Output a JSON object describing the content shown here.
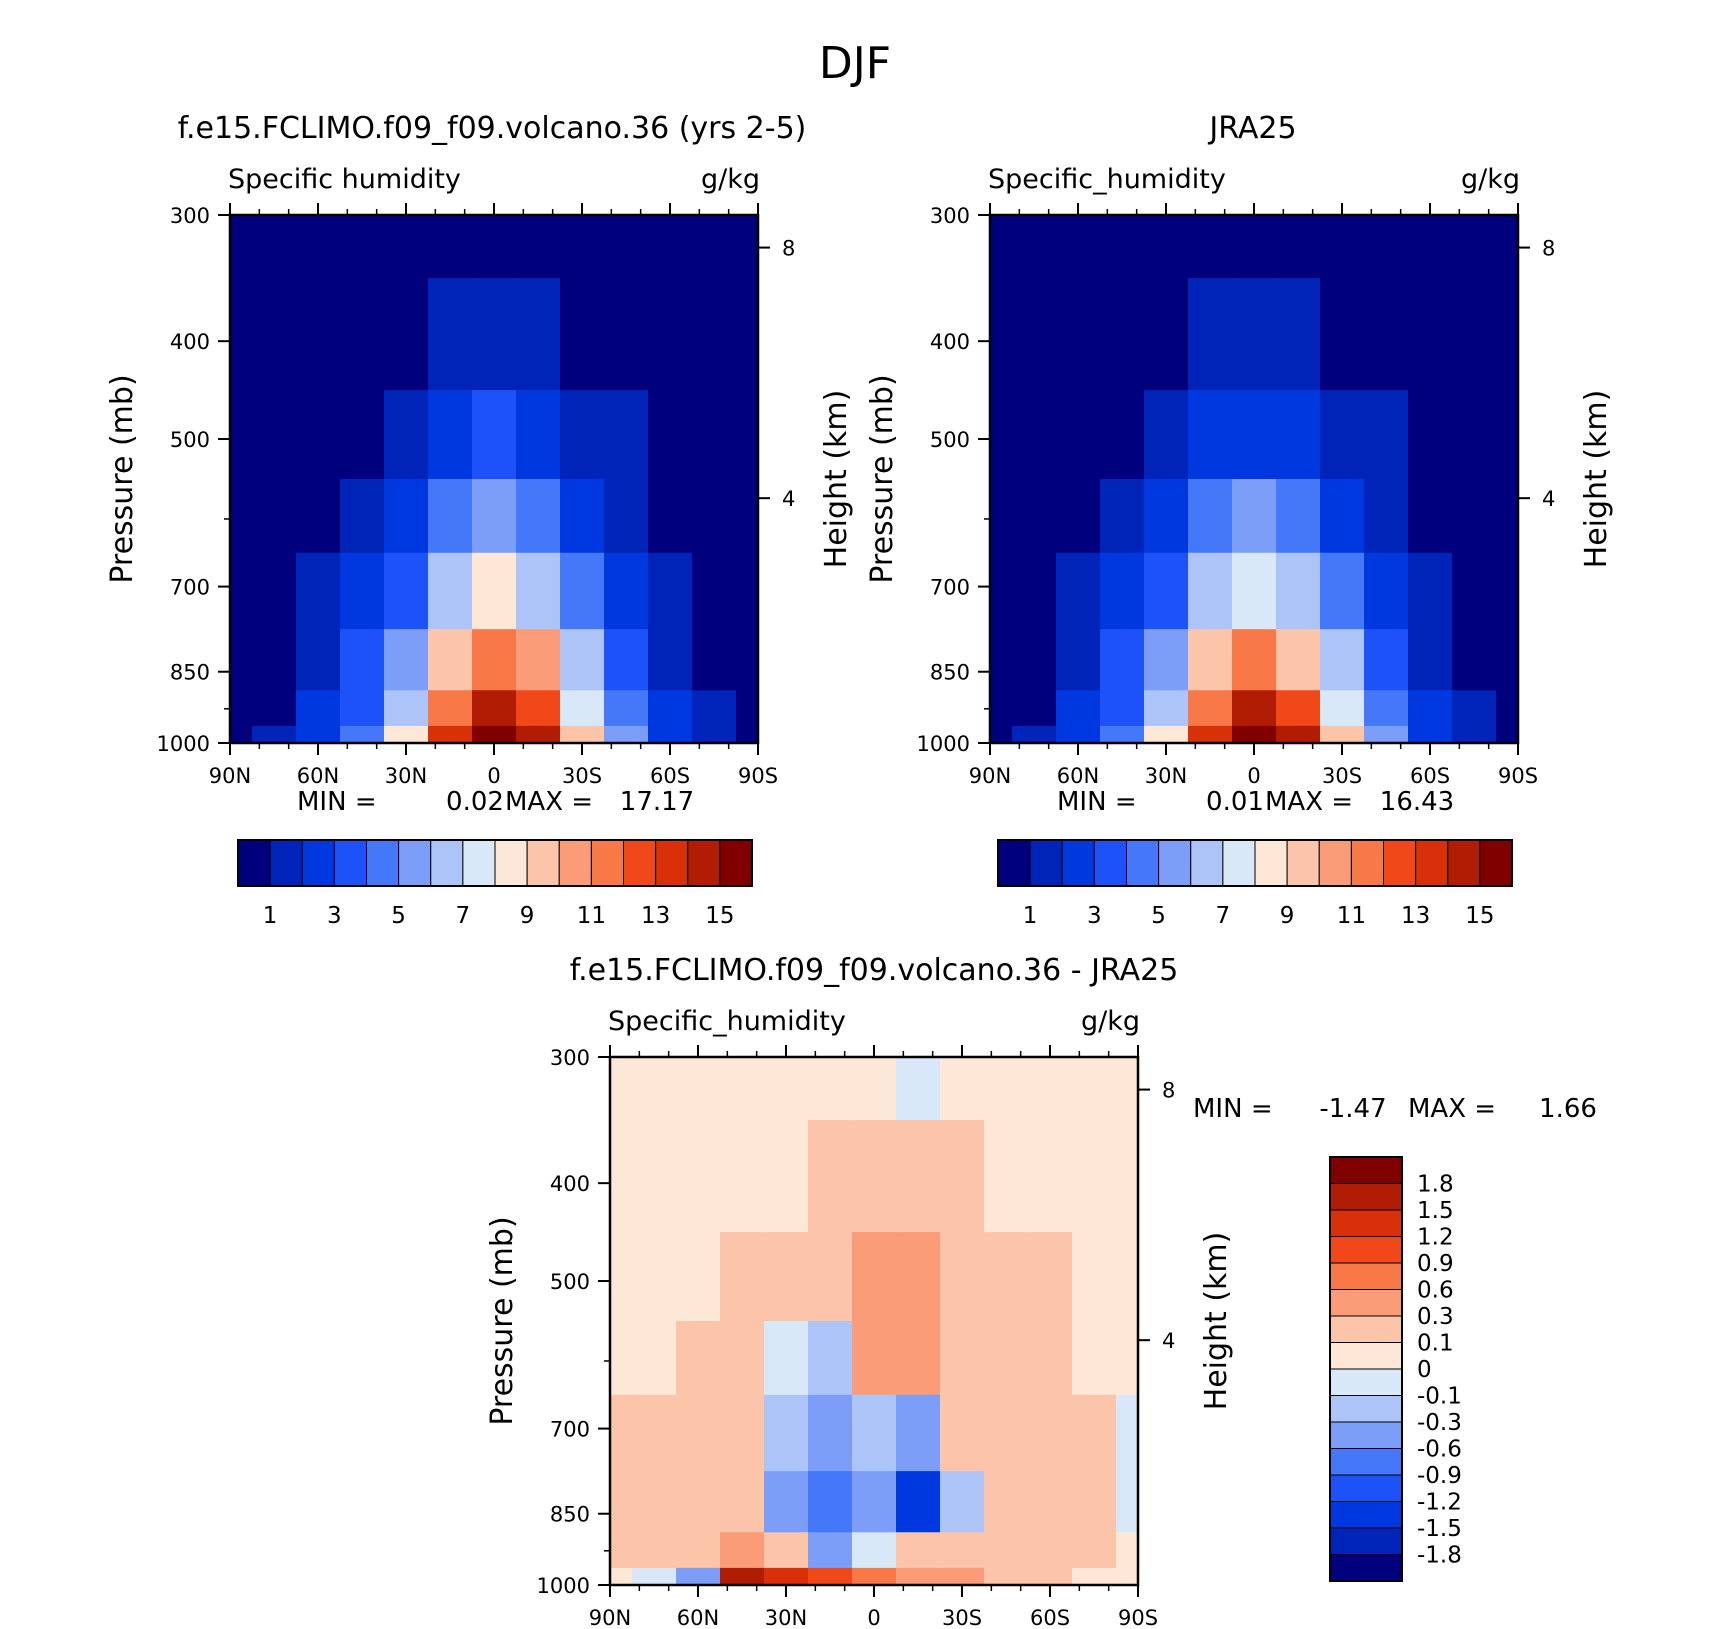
{
  "figure": {
    "title": "DJF"
  },
  "chart_data": [
    {
      "id": "model",
      "type": "heatmap",
      "title": "f.e15.FCLIMO.f09_f09.volcano.36 (yrs 2-5)",
      "left_label": "Specific humidity",
      "units": "g/kg",
      "ylabel": "Pressure (mb)",
      "right_ylabel": "Height (km)",
      "x_ticks": [
        "90N",
        "60N",
        "30N",
        "0",
        "30S",
        "60S",
        "90S"
      ],
      "y_ticks": [
        "300",
        "400",
        "500",
        "700",
        "850",
        "1000"
      ],
      "right_ticks": [
        "8",
        "4"
      ],
      "min_label": "MIN =",
      "min_value": "0.02",
      "max_label": "MAX =",
      "max_value": "17.17",
      "levels": [
        1,
        2,
        3,
        4,
        5,
        6,
        7,
        8,
        9,
        10,
        11,
        12,
        13,
        14,
        15
      ],
      "colorbar_labels": [
        "1",
        "3",
        "5",
        "7",
        "9",
        "11",
        "13",
        "15"
      ],
      "lat": [
        90,
        75,
        60,
        45,
        30,
        15,
        0,
        -15,
        -30,
        -45,
        -60,
        -75,
        -90
      ],
      "pressure": [
        300,
        400,
        500,
        600,
        700,
        850,
        925,
        1000
      ],
      "values": [
        [
          0.02,
          0.04,
          0.06,
          0.1,
          0.2,
          0.4,
          0.55,
          0.4,
          0.2,
          0.1,
          0.05,
          0.03,
          0.02
        ],
        [
          0.05,
          0.1,
          0.2,
          0.4,
          0.8,
          1.2,
          1.5,
          1.2,
          0.8,
          0.4,
          0.15,
          0.06,
          0.04
        ],
        [
          0.1,
          0.2,
          0.5,
          0.9,
          1.5,
          2.5,
          3.0,
          2.6,
          1.6,
          1.0,
          0.4,
          0.15,
          0.08
        ],
        [
          0.2,
          0.4,
          0.8,
          1.4,
          2.4,
          4.0,
          5.2,
          4.2,
          2.8,
          1.6,
          0.8,
          0.3,
          0.15
        ],
        [
          0.3,
          0.6,
          1.2,
          2.0,
          3.5,
          6.5,
          8.0,
          6.5,
          4.0,
          2.2,
          1.2,
          0.5,
          0.25
        ],
        [
          0.45,
          0.8,
          1.6,
          3.0,
          5.0,
          9.5,
          11.5,
          10.0,
          6.0,
          3.5,
          1.6,
          0.8,
          0.4
        ],
        [
          0.5,
          0.9,
          2.0,
          3.8,
          6.5,
          11.5,
          14.5,
          12.5,
          7.5,
          4.5,
          2.0,
          1.0,
          0.5
        ],
        [
          0.55,
          1.0,
          2.4,
          4.5,
          8.0,
          13.5,
          17.17,
          14.5,
          9.0,
          5.5,
          2.4,
          1.1,
          0.6
        ]
      ]
    },
    {
      "id": "obs",
      "type": "heatmap",
      "title": "JRA25",
      "left_label": "Specific_humidity",
      "units": "g/kg",
      "ylabel": "Pressure (mb)",
      "right_ylabel": "Height (km)",
      "x_ticks": [
        "90N",
        "60N",
        "30N",
        "0",
        "30S",
        "60S",
        "90S"
      ],
      "y_ticks": [
        "300",
        "400",
        "500",
        "700",
        "850",
        "1000"
      ],
      "right_ticks": [
        "8",
        "4"
      ],
      "min_label": "MIN =",
      "min_value": "0.01",
      "max_label": "MAX =",
      "max_value": "16.43",
      "levels": [
        1,
        2,
        3,
        4,
        5,
        6,
        7,
        8,
        9,
        10,
        11,
        12,
        13,
        14,
        15
      ],
      "colorbar_labels": [
        "1",
        "3",
        "5",
        "7",
        "9",
        "11",
        "13",
        "15"
      ],
      "lat": [
        90,
        75,
        60,
        45,
        30,
        15,
        0,
        -15,
        -30,
        -45,
        -60,
        -75,
        -90
      ],
      "pressure": [
        300,
        400,
        500,
        600,
        700,
        850,
        925,
        1000
      ],
      "values": [
        [
          0.01,
          0.03,
          0.06,
          0.1,
          0.2,
          0.4,
          0.55,
          0.4,
          0.2,
          0.1,
          0.05,
          0.03,
          0.02
        ],
        [
          0.04,
          0.1,
          0.2,
          0.4,
          0.8,
          1.2,
          1.5,
          1.2,
          0.8,
          0.4,
          0.15,
          0.06,
          0.04
        ],
        [
          0.1,
          0.2,
          0.5,
          0.9,
          1.5,
          2.4,
          2.9,
          2.5,
          1.6,
          1.0,
          0.4,
          0.15,
          0.08
        ],
        [
          0.2,
          0.4,
          0.8,
          1.4,
          2.4,
          4.0,
          5.0,
          4.2,
          2.8,
          1.6,
          0.8,
          0.3,
          0.15
        ],
        [
          0.3,
          0.6,
          1.2,
          2.0,
          3.5,
          6.3,
          7.8,
          6.4,
          4.0,
          2.2,
          1.2,
          0.5,
          0.25
        ],
        [
          0.4,
          0.8,
          1.6,
          3.0,
          5.0,
          9.2,
          11.2,
          9.8,
          6.0,
          3.5,
          1.6,
          0.8,
          0.4
        ],
        [
          0.45,
          0.9,
          2.0,
          3.8,
          6.5,
          11.2,
          14.0,
          12.2,
          7.5,
          4.5,
          2.0,
          1.0,
          0.5
        ],
        [
          0.5,
          1.0,
          2.4,
          4.5,
          8.0,
          13.2,
          16.43,
          14.2,
          9.0,
          5.5,
          2.4,
          1.1,
          0.6
        ]
      ]
    },
    {
      "id": "diff",
      "type": "heatmap",
      "title": "f.e15.FCLIMO.f09_f09.volcano.36 - JRA25",
      "left_label": "Specific_humidity",
      "units": "g/kg",
      "ylabel": "Pressure (mb)",
      "right_ylabel": "Height (km)",
      "x_ticks": [
        "90N",
        "60N",
        "30N",
        "0",
        "30S",
        "60S",
        "90S"
      ],
      "y_ticks": [
        "300",
        "400",
        "500",
        "700",
        "850",
        "1000"
      ],
      "right_ticks": [
        "8",
        "4"
      ],
      "min_label": "MIN =",
      "min_value": "-1.47",
      "max_label": "MAX =",
      "max_value": "1.66",
      "levels": [
        -1.8,
        -1.5,
        -1.2,
        -0.9,
        -0.6,
        -0.3,
        -0.1,
        0,
        0.1,
        0.3,
        0.6,
        0.9,
        1.2,
        1.5,
        1.8
      ],
      "colorbar_labels": [
        "1.8",
        "1.5",
        "1.2",
        "0.9",
        "0.6",
        "0.3",
        "0.1",
        "0",
        "-0.1",
        "-0.3",
        "-0.6",
        "-0.9",
        "-1.2",
        "-1.5",
        "-1.8"
      ],
      "lat": [
        90,
        75,
        60,
        45,
        30,
        15,
        0,
        -15,
        -30,
        -45,
        -60,
        -75,
        -90
      ],
      "pressure": [
        300,
        400,
        500,
        600,
        700,
        850,
        925,
        1000
      ],
      "values": [
        [
          0.05,
          0.05,
          0.05,
          0.05,
          0.05,
          0.05,
          0.02,
          -0.05,
          0.05,
          0.05,
          0.05,
          0.05,
          0.05
        ],
        [
          0.05,
          0.05,
          0.05,
          0.06,
          0.08,
          0.1,
          0.2,
          0.2,
          0.15,
          0.08,
          0.06,
          0.05,
          0.05
        ],
        [
          0.05,
          0.06,
          0.08,
          0.12,
          0.15,
          0.2,
          0.45,
          0.4,
          0.18,
          0.12,
          0.1,
          0.06,
          0.05
        ],
        [
          0.06,
          0.08,
          0.1,
          0.15,
          -0.05,
          -0.15,
          0.4,
          0.3,
          0.2,
          0.15,
          0.12,
          0.08,
          0.04
        ],
        [
          0.12,
          0.15,
          0.18,
          0.15,
          -0.25,
          -0.5,
          -0.15,
          -0.35,
          0.1,
          0.15,
          0.15,
          0.1,
          -0.03
        ],
        [
          0.15,
          0.18,
          0.2,
          0.12,
          -0.4,
          -0.7,
          -0.5,
          -1.47,
          -0.3,
          0.1,
          0.15,
          0.12,
          -0.05
        ],
        [
          0.12,
          0.1,
          0.15,
          0.35,
          0.2,
          -0.35,
          -0.05,
          0.2,
          0.15,
          0.1,
          0.12,
          0.1,
          0.05
        ],
        [
          0.05,
          -0.1,
          -0.5,
          1.66,
          1.4,
          0.9,
          0.6,
          0.4,
          0.3,
          0.15,
          0.1,
          0.08,
          0.05
        ]
      ]
    }
  ],
  "colors": {
    "palette": [
      "#00007f",
      "#0024b8",
      "#0038e0",
      "#1c52f8",
      "#4478f8",
      "#7c9ef8",
      "#acc4f8",
      "#d8e8f8",
      "#fde8d8",
      "#fcc4a8",
      "#fa9c78",
      "#f87848",
      "#f04818",
      "#d83008",
      "#b01c04",
      "#800000"
    ]
  }
}
